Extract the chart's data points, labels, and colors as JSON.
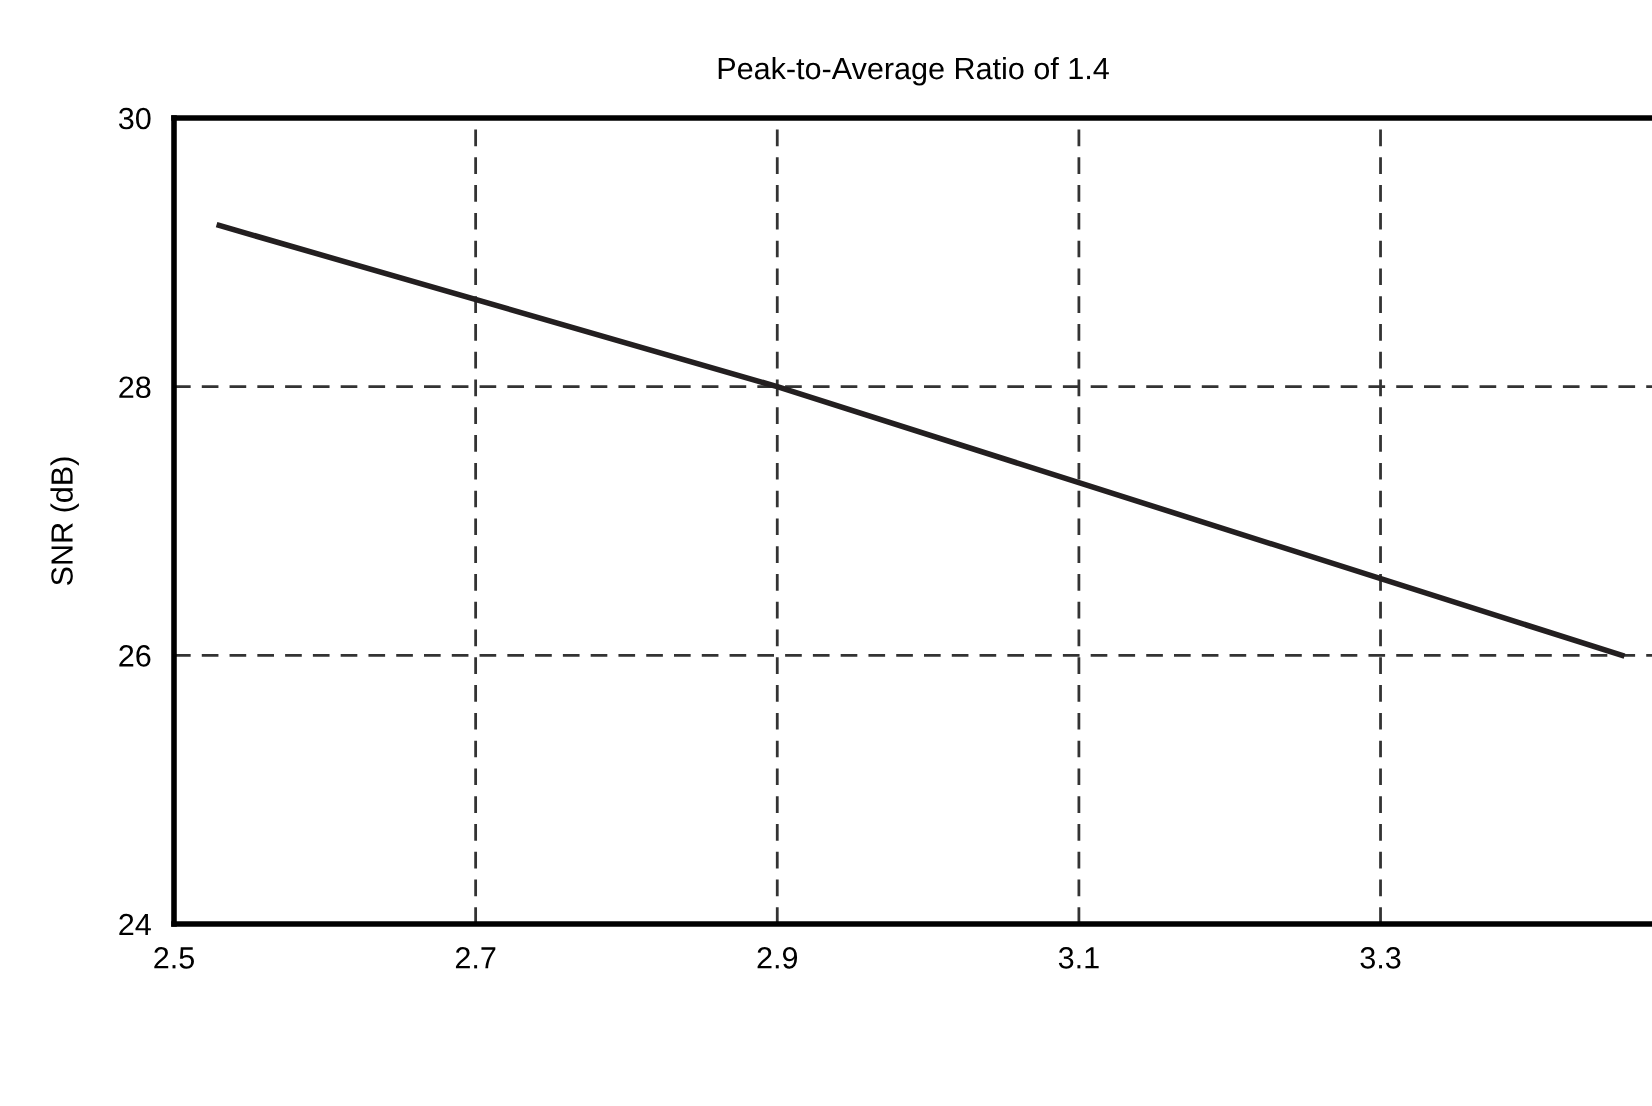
{
  "chart_data": {
    "type": "line",
    "title": "Peak-to-Average Ratio of 1.4",
    "ylabel": "SNR (dB)",
    "x": [
      2.53,
      2.9,
      3.46
    ],
    "series": [
      {
        "color": "#231f20",
        "values": [
          29.2,
          28.0,
          26.0
        ]
      }
    ],
    "xlim": [
      2.5,
      3.48
    ],
    "xticks": [
      2.5,
      2.7,
      2.9,
      3.1,
      3.3
    ],
    "ylim": [
      24,
      30
    ],
    "yticks": [
      24,
      26,
      28,
      30
    ],
    "grid": true,
    "marker": "none",
    "line_style": "solid"
  }
}
